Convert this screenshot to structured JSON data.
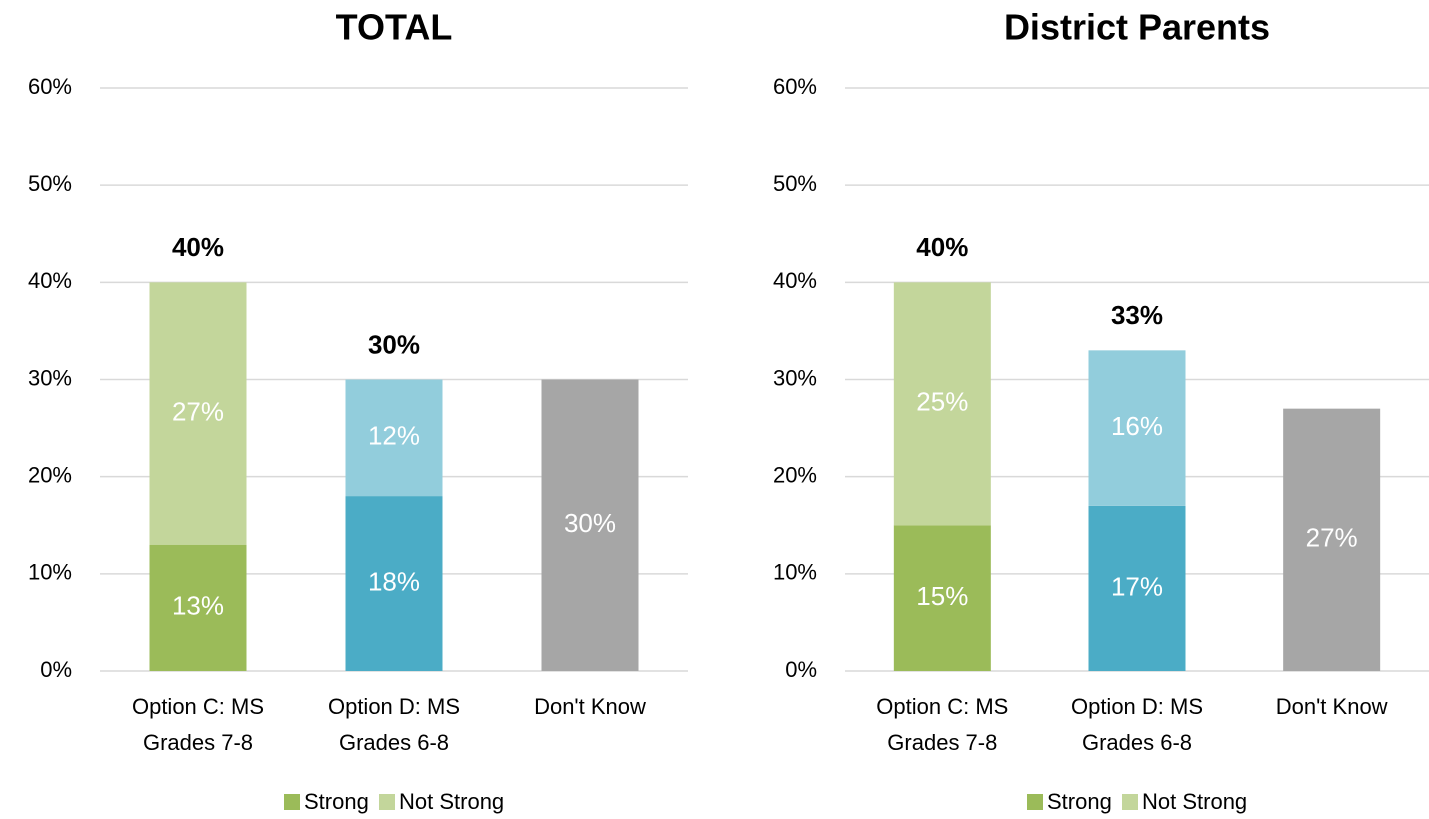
{
  "chart_data": [
    {
      "type": "stacked_bar",
      "title": "TOTAL",
      "categories": [
        [
          "Option C: MS",
          "Grades 7-8"
        ],
        [
          "Option D: MS",
          "Grades 6-8"
        ],
        [
          "Don't Know"
        ]
      ],
      "series": [
        {
          "name": "Strong",
          "color": "#9bbb59",
          "colors": [
            "#9bbb59",
            "#4bacc6",
            "#a6a6a6"
          ],
          "values": [
            13,
            18,
            null
          ],
          "value_labels": [
            "13%",
            "18%",
            null
          ]
        },
        {
          "name": "Not Strong",
          "color": "#c3d69b",
          "colors": [
            "#c3d69b",
            "#92cddc",
            "#a6a6a6"
          ],
          "values": [
            27,
            12,
            null
          ],
          "value_labels": [
            "27%",
            "12%",
            null
          ]
        },
        {
          "colors": [
            "#a6a6a6",
            "#a6a6a6",
            "#a6a6a6"
          ],
          "values": [
            null,
            null,
            30
          ],
          "value_labels": [
            null,
            null,
            "30%"
          ]
        }
      ],
      "totals": [
        40,
        30,
        null
      ],
      "total_labels": [
        "40%",
        "30%",
        null
      ],
      "ylim": [
        0,
        60
      ],
      "yticks": [
        {
          "value": 0,
          "label": "0%"
        },
        {
          "value": 10,
          "label": "10%"
        },
        {
          "value": 20,
          "label": "20%"
        },
        {
          "value": 30,
          "label": "30%"
        },
        {
          "value": 40,
          "label": "40%"
        },
        {
          "value": 50,
          "label": "50%"
        },
        {
          "value": 60,
          "label": "60%"
        }
      ],
      "grid": true,
      "legend": "bottom"
    },
    {
      "type": "stacked_bar",
      "title": "District Parents",
      "categories": [
        [
          "Option C: MS",
          "Grades 7-8"
        ],
        [
          "Option D: MS",
          "Grades 6-8"
        ],
        [
          "Don't Know"
        ]
      ],
      "series": [
        {
          "name": "Strong",
          "color": "#9bbb59",
          "colors": [
            "#9bbb59",
            "#4bacc6",
            "#a6a6a6"
          ],
          "values": [
            15,
            17,
            null
          ],
          "value_labels": [
            "15%",
            "17%",
            null
          ]
        },
        {
          "name": "Not Strong",
          "color": "#c3d69b",
          "colors": [
            "#c3d69b",
            "#92cddc",
            "#a6a6a6"
          ],
          "values": [
            25,
            16,
            null
          ],
          "value_labels": [
            "25%",
            "16%",
            null
          ]
        },
        {
          "colors": [
            "#a6a6a6",
            "#a6a6a6",
            "#a6a6a6"
          ],
          "values": [
            null,
            null,
            27
          ],
          "value_labels": [
            null,
            null,
            "27%"
          ]
        }
      ],
      "totals": [
        40,
        33,
        null
      ],
      "total_labels": [
        "40%",
        "33%",
        null
      ],
      "ylim": [
        0,
        60
      ],
      "yticks": [
        {
          "value": 0,
          "label": "0%"
        },
        {
          "value": 10,
          "label": "10%"
        },
        {
          "value": 20,
          "label": "20%"
        },
        {
          "value": 30,
          "label": "30%"
        },
        {
          "value": 40,
          "label": "40%"
        },
        {
          "value": 50,
          "label": "50%"
        },
        {
          "value": 60,
          "label": "60%"
        }
      ],
      "grid": true,
      "legend": "bottom"
    }
  ]
}
